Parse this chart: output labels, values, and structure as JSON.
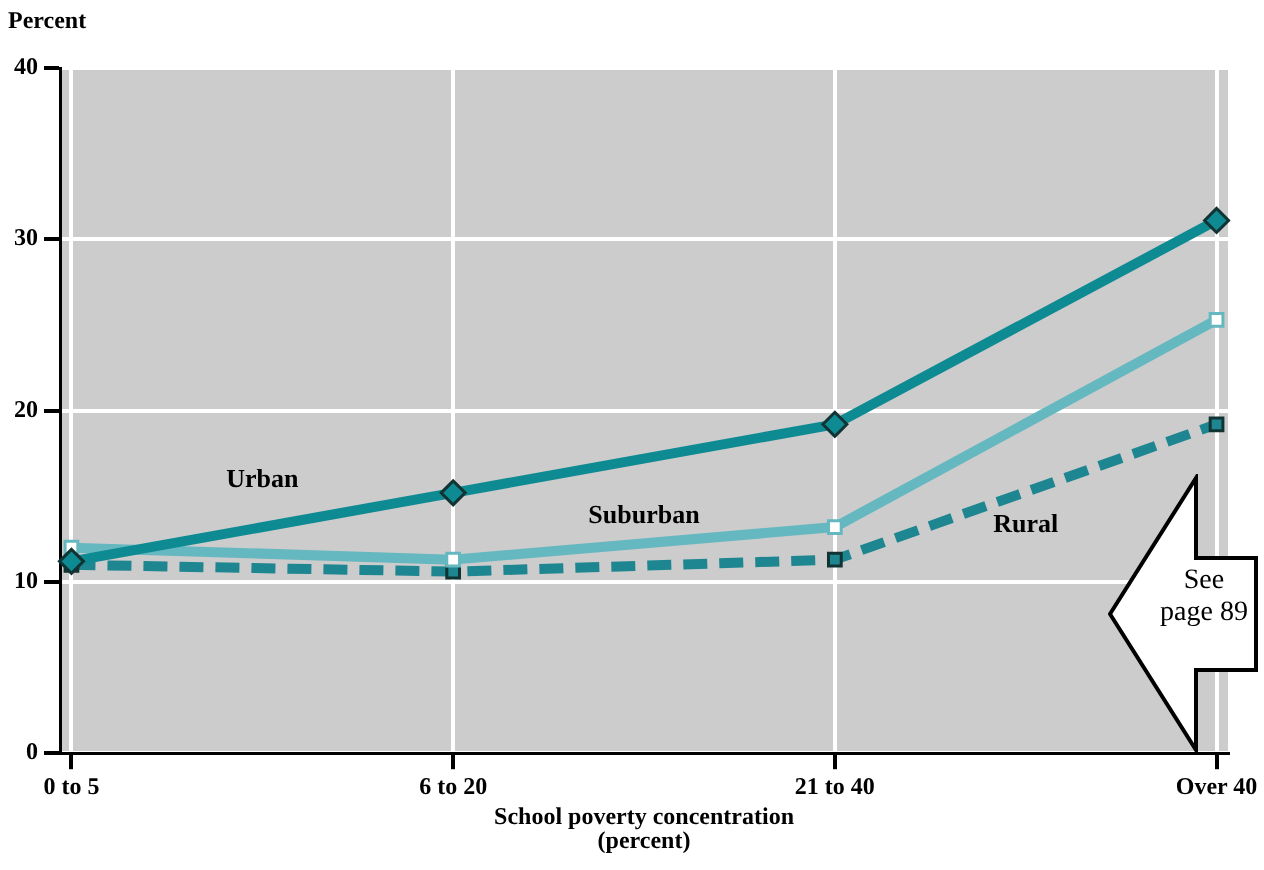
{
  "chart_data": {
    "type": "line",
    "ylabel": "Percent",
    "xlabel": "School poverty concentration\n(percent)",
    "categories": [
      "0 to 5",
      "6 to 20",
      "21 to 40",
      "Over 40"
    ],
    "series": [
      {
        "name": "Urban",
        "color": "#0e8a93",
        "values": [
          11.2,
          15.2,
          19.2,
          31.1
        ],
        "marker": "diamond",
        "line_style": "solid"
      },
      {
        "name": "Suburban",
        "color": "#66b8c0",
        "values": [
          12,
          11.3,
          13.2,
          25.3
        ],
        "marker": "square",
        "line_style": "solid"
      },
      {
        "name": "Rural",
        "color": "#1e8690",
        "values": [
          11,
          10.6,
          11.3,
          19.2
        ],
        "marker": "square",
        "line_style": "dashed"
      }
    ],
    "ylim": [
      0,
      40
    ],
    "yticks": [
      0,
      10,
      20,
      30,
      40
    ],
    "grid": true,
    "legend": false,
    "annotations": [
      "See page 89"
    ]
  }
}
